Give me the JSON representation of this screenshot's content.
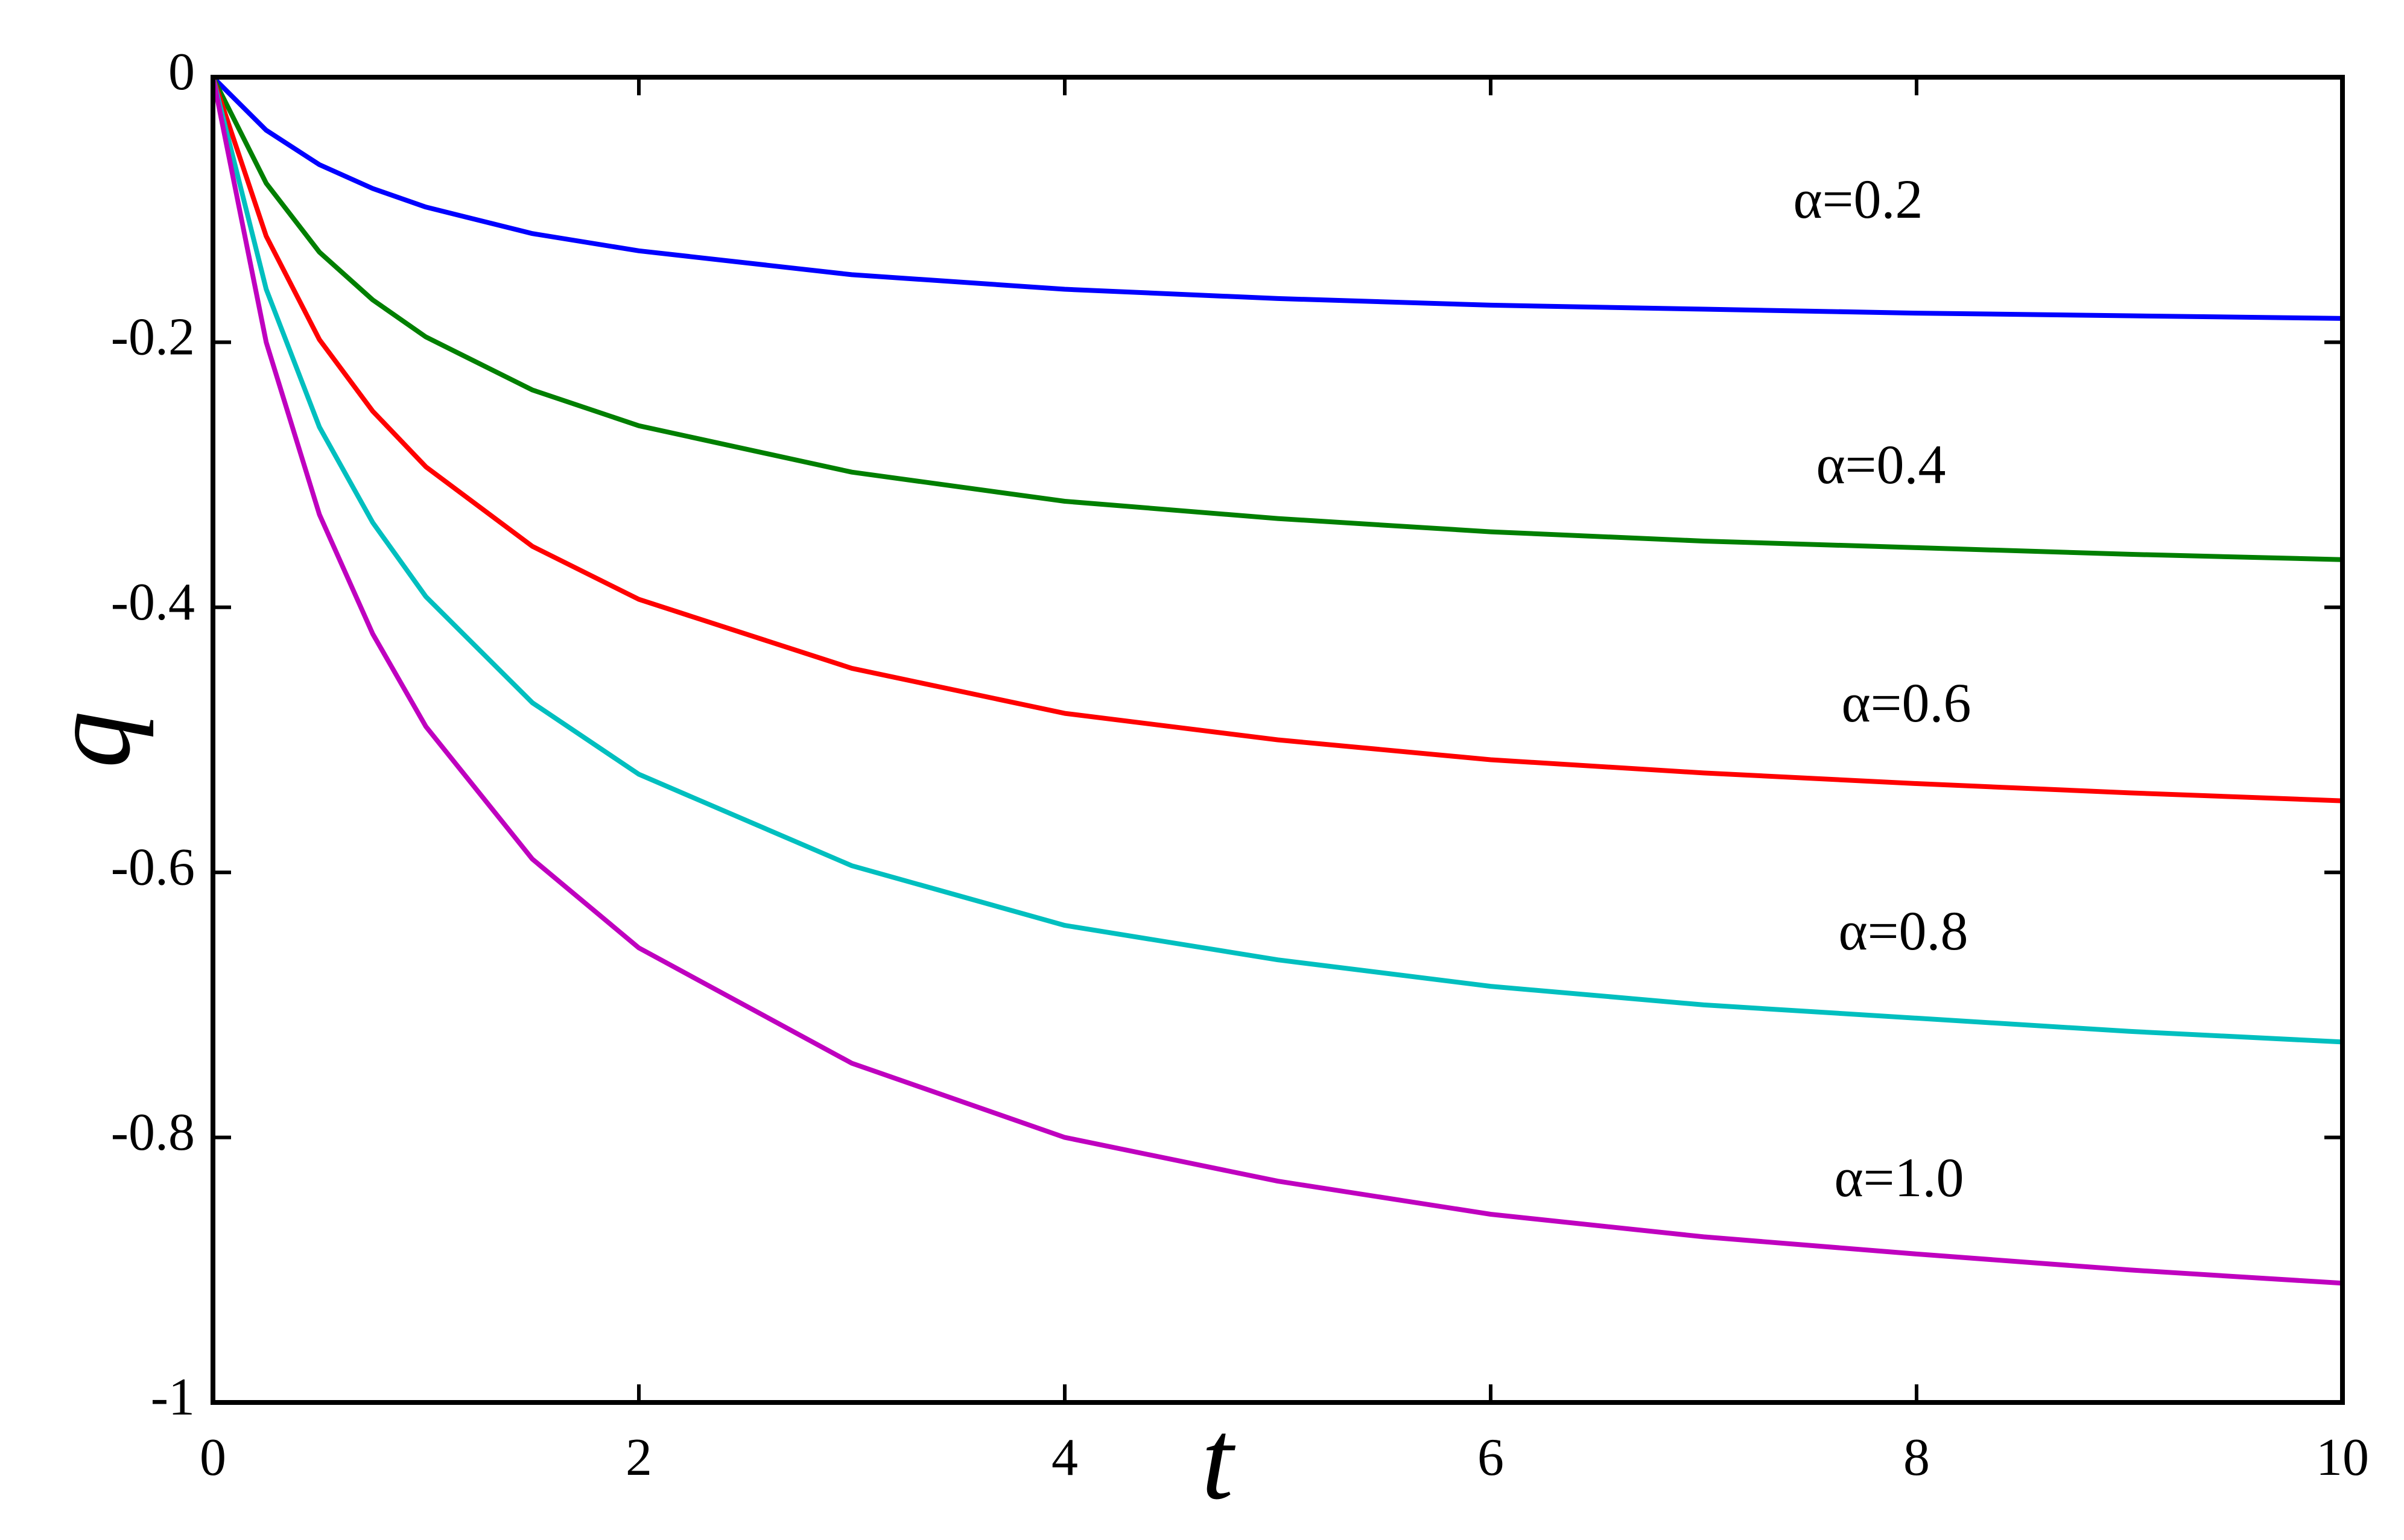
{
  "chart_data": {
    "type": "line",
    "x_label": "t",
    "y_label": "q",
    "x": [
      0,
      0.25,
      0.5,
      0.75,
      1,
      1.5,
      2,
      3,
      4,
      5,
      6,
      7,
      8,
      9,
      10
    ],
    "series": [
      {
        "name": "α=0.2",
        "color": "#0000ff",
        "values": [
          0,
          -0.04,
          -0.066,
          -0.084,
          -0.098,
          -0.118,
          -0.131,
          -0.149,
          -0.16,
          -0.167,
          -0.172,
          -0.175,
          -0.178,
          -0.18,
          -0.182
        ]
      },
      {
        "name": "α=0.4",
        "color": "#007f00",
        "values": [
          0,
          -0.08,
          -0.132,
          -0.168,
          -0.196,
          -0.236,
          -0.263,
          -0.298,
          -0.32,
          -0.333,
          -0.343,
          -0.35,
          -0.355,
          -0.36,
          -0.364
        ]
      },
      {
        "name": "α=0.6",
        "color": "#ff0000",
        "values": [
          0,
          -0.12,
          -0.198,
          -0.252,
          -0.294,
          -0.354,
          -0.394,
          -0.446,
          -0.48,
          -0.5,
          -0.515,
          -0.525,
          -0.533,
          -0.54,
          -0.546
        ]
      },
      {
        "name": "α=0.8",
        "color": "#00bfbf",
        "values": [
          0,
          -0.16,
          -0.264,
          -0.336,
          -0.392,
          -0.472,
          -0.526,
          -0.595,
          -0.64,
          -0.666,
          -0.686,
          -0.7,
          -0.71,
          -0.72,
          -0.728
        ]
      },
      {
        "name": "α=1.0",
        "color": "#bf00bf",
        "values": [
          0,
          -0.2,
          -0.33,
          -0.42,
          -0.49,
          -0.59,
          -0.657,
          -0.744,
          -0.8,
          -0.833,
          -0.858,
          -0.875,
          -0.888,
          -0.9,
          -0.91
        ]
      }
    ],
    "xlim": [
      0,
      10
    ],
    "xticks": [
      0,
      2,
      4,
      6,
      8,
      10
    ],
    "ylim": [
      -1,
      0
    ],
    "yticks": [
      0,
      -0.2,
      -0.4,
      -0.6,
      -0.8,
      -1
    ],
    "grid": false
  }
}
